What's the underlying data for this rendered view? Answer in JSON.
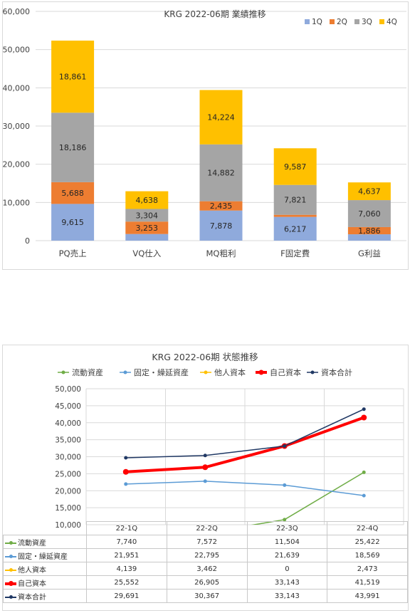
{
  "chart_data": [
    {
      "type": "bar",
      "stacked": true,
      "title": "KRG 2022-06期 業績推移",
      "categories": [
        "PQ売上",
        "VQ仕入",
        "MQ粗利",
        "F固定費",
        "G利益"
      ],
      "series": [
        {
          "name": "1Q",
          "color": "#8faadc",
          "values": [
            9615,
            1737,
            7878,
            6217,
            1661
          ]
        },
        {
          "name": "2Q",
          "color": "#ed7d31",
          "values": [
            5688,
            3253,
            2435,
            548,
            1886
          ]
        },
        {
          "name": "3Q",
          "color": "#a5a5a5",
          "values": [
            18186,
            3304,
            14882,
            7821,
            7060
          ]
        },
        {
          "name": "4Q",
          "color": "#ffc000",
          "values": [
            18861,
            4638,
            14224,
            9587,
            4637
          ]
        }
      ],
      "data_labels": [
        [
          "9,615",
          "1,737",
          "7,878",
          "6,217",
          "1,661"
        ],
        [
          "5,688",
          "3,253",
          "2,435",
          "548",
          "1,886"
        ],
        [
          "18,186",
          "3,304",
          "14,882",
          "7,821",
          "7,060"
        ],
        [
          "18,861",
          "4,638",
          "14,224",
          "9,587",
          "4,637"
        ]
      ],
      "ylim": [
        0,
        60000
      ],
      "yticks": [
        "0",
        "10,000",
        "20,000",
        "30,000",
        "40,000",
        "50,000",
        "60,000"
      ],
      "grid": true,
      "legend_position": "top-right"
    },
    {
      "type": "line",
      "title": "KRG 2022-06期 状態推移",
      "categories": [
        "22-1Q",
        "22-2Q",
        "22-3Q",
        "22-4Q"
      ],
      "series": [
        {
          "name": "流動資産",
          "color": "#70ad47",
          "values": [
            7740,
            7572,
            11504,
            25422
          ],
          "labels": [
            "7,740",
            "7,572",
            "11,504",
            "25,422"
          ]
        },
        {
          "name": "固定・繰延資産",
          "color": "#5b9bd5",
          "values": [
            21951,
            22795,
            21639,
            18569
          ],
          "labels": [
            "21,951",
            "22,795",
            "21,639",
            "18,569"
          ]
        },
        {
          "name": "他人資本",
          "color": "#ffc000",
          "values": [
            4139,
            3462,
            0,
            2473
          ],
          "labels": [
            "4,139",
            "3,462",
            "0",
            "2,473"
          ]
        },
        {
          "name": "自己資本",
          "color": "#ff0000",
          "values": [
            25552,
            26905,
            33143,
            41519
          ],
          "labels": [
            "25,552",
            "26,905",
            "33,143",
            "41,519"
          ]
        },
        {
          "name": "資本合計",
          "color": "#203864",
          "values": [
            29691,
            30367,
            33143,
            43991
          ],
          "labels": [
            "29,691",
            "30,367",
            "33,143",
            "43,991"
          ]
        }
      ],
      "ylim": [
        10000,
        50000
      ],
      "yticks": [
        "10,000",
        "15,000",
        "20,000",
        "25,000",
        "30,000",
        "35,000",
        "40,000",
        "45,000",
        "50,000"
      ],
      "grid": true,
      "legend_position": "top",
      "data_table": true
    }
  ]
}
